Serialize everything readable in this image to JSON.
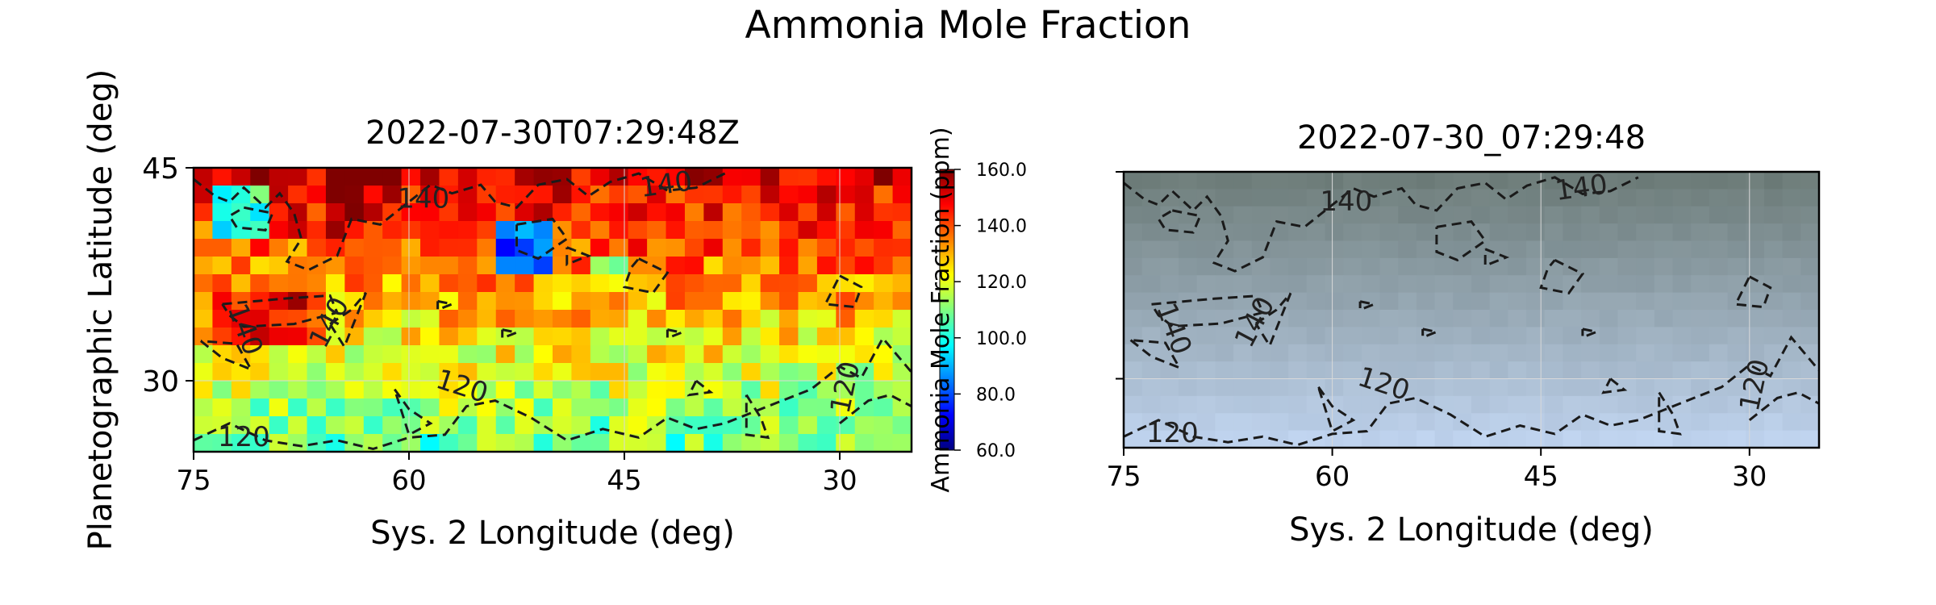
{
  "figure": {
    "title": "Ammonia Mole Fraction"
  },
  "colors": {
    "jet": [
      "#00007f",
      "#0000ff",
      "#0080ff",
      "#00ffff",
      "#80ff80",
      "#ffff00",
      "#ff8000",
      "#ff0000",
      "#7f0000"
    ],
    "contour": "#1a1a1a",
    "grid": "#d9d9d9"
  },
  "chart_data": [
    {
      "id": "left",
      "type": "heatmap",
      "title": "2022-07-30T07:29:48Z",
      "xlabel": "Sys. 2 Longitude (deg)",
      "ylabel": "Planetographic Latitude (deg)",
      "xlim": [
        75,
        25
      ],
      "ylim": [
        25,
        45
      ],
      "xticks": [
        "75",
        "60",
        "45",
        "30"
      ],
      "yticks": [
        "45",
        "30"
      ],
      "grid": true,
      "colorscale": "jet",
      "zlim": [
        60,
        160
      ],
      "contour_levels": [
        120,
        140
      ],
      "contour_labels": [
        "140",
        "140",
        "140",
        "140",
        "120",
        "120",
        "120"
      ]
    },
    {
      "id": "right",
      "type": "heatmap",
      "title": "2022-07-30_07:29:48",
      "xlabel": "Sys. 2 Longitude (deg)",
      "ylabel": "",
      "xlim": [
        75,
        25
      ],
      "ylim": [
        25,
        45
      ],
      "xticks": [
        "75",
        "60",
        "45",
        "30"
      ],
      "yticks": [
        "",
        ""
      ],
      "grid": true,
      "colorscale": "gray-blue image",
      "contour_levels": [
        120,
        140
      ],
      "contour_labels": [
        "140",
        "140",
        "140",
        "140",
        "120",
        "120",
        "120"
      ]
    }
  ],
  "colorbar": {
    "label": "Ammonia Mole Fraction (ppm)",
    "min": 60,
    "max": 160,
    "ticks": [
      "60.0",
      "80.0",
      "100.0",
      "120.0",
      "140.0",
      "160.0"
    ]
  }
}
